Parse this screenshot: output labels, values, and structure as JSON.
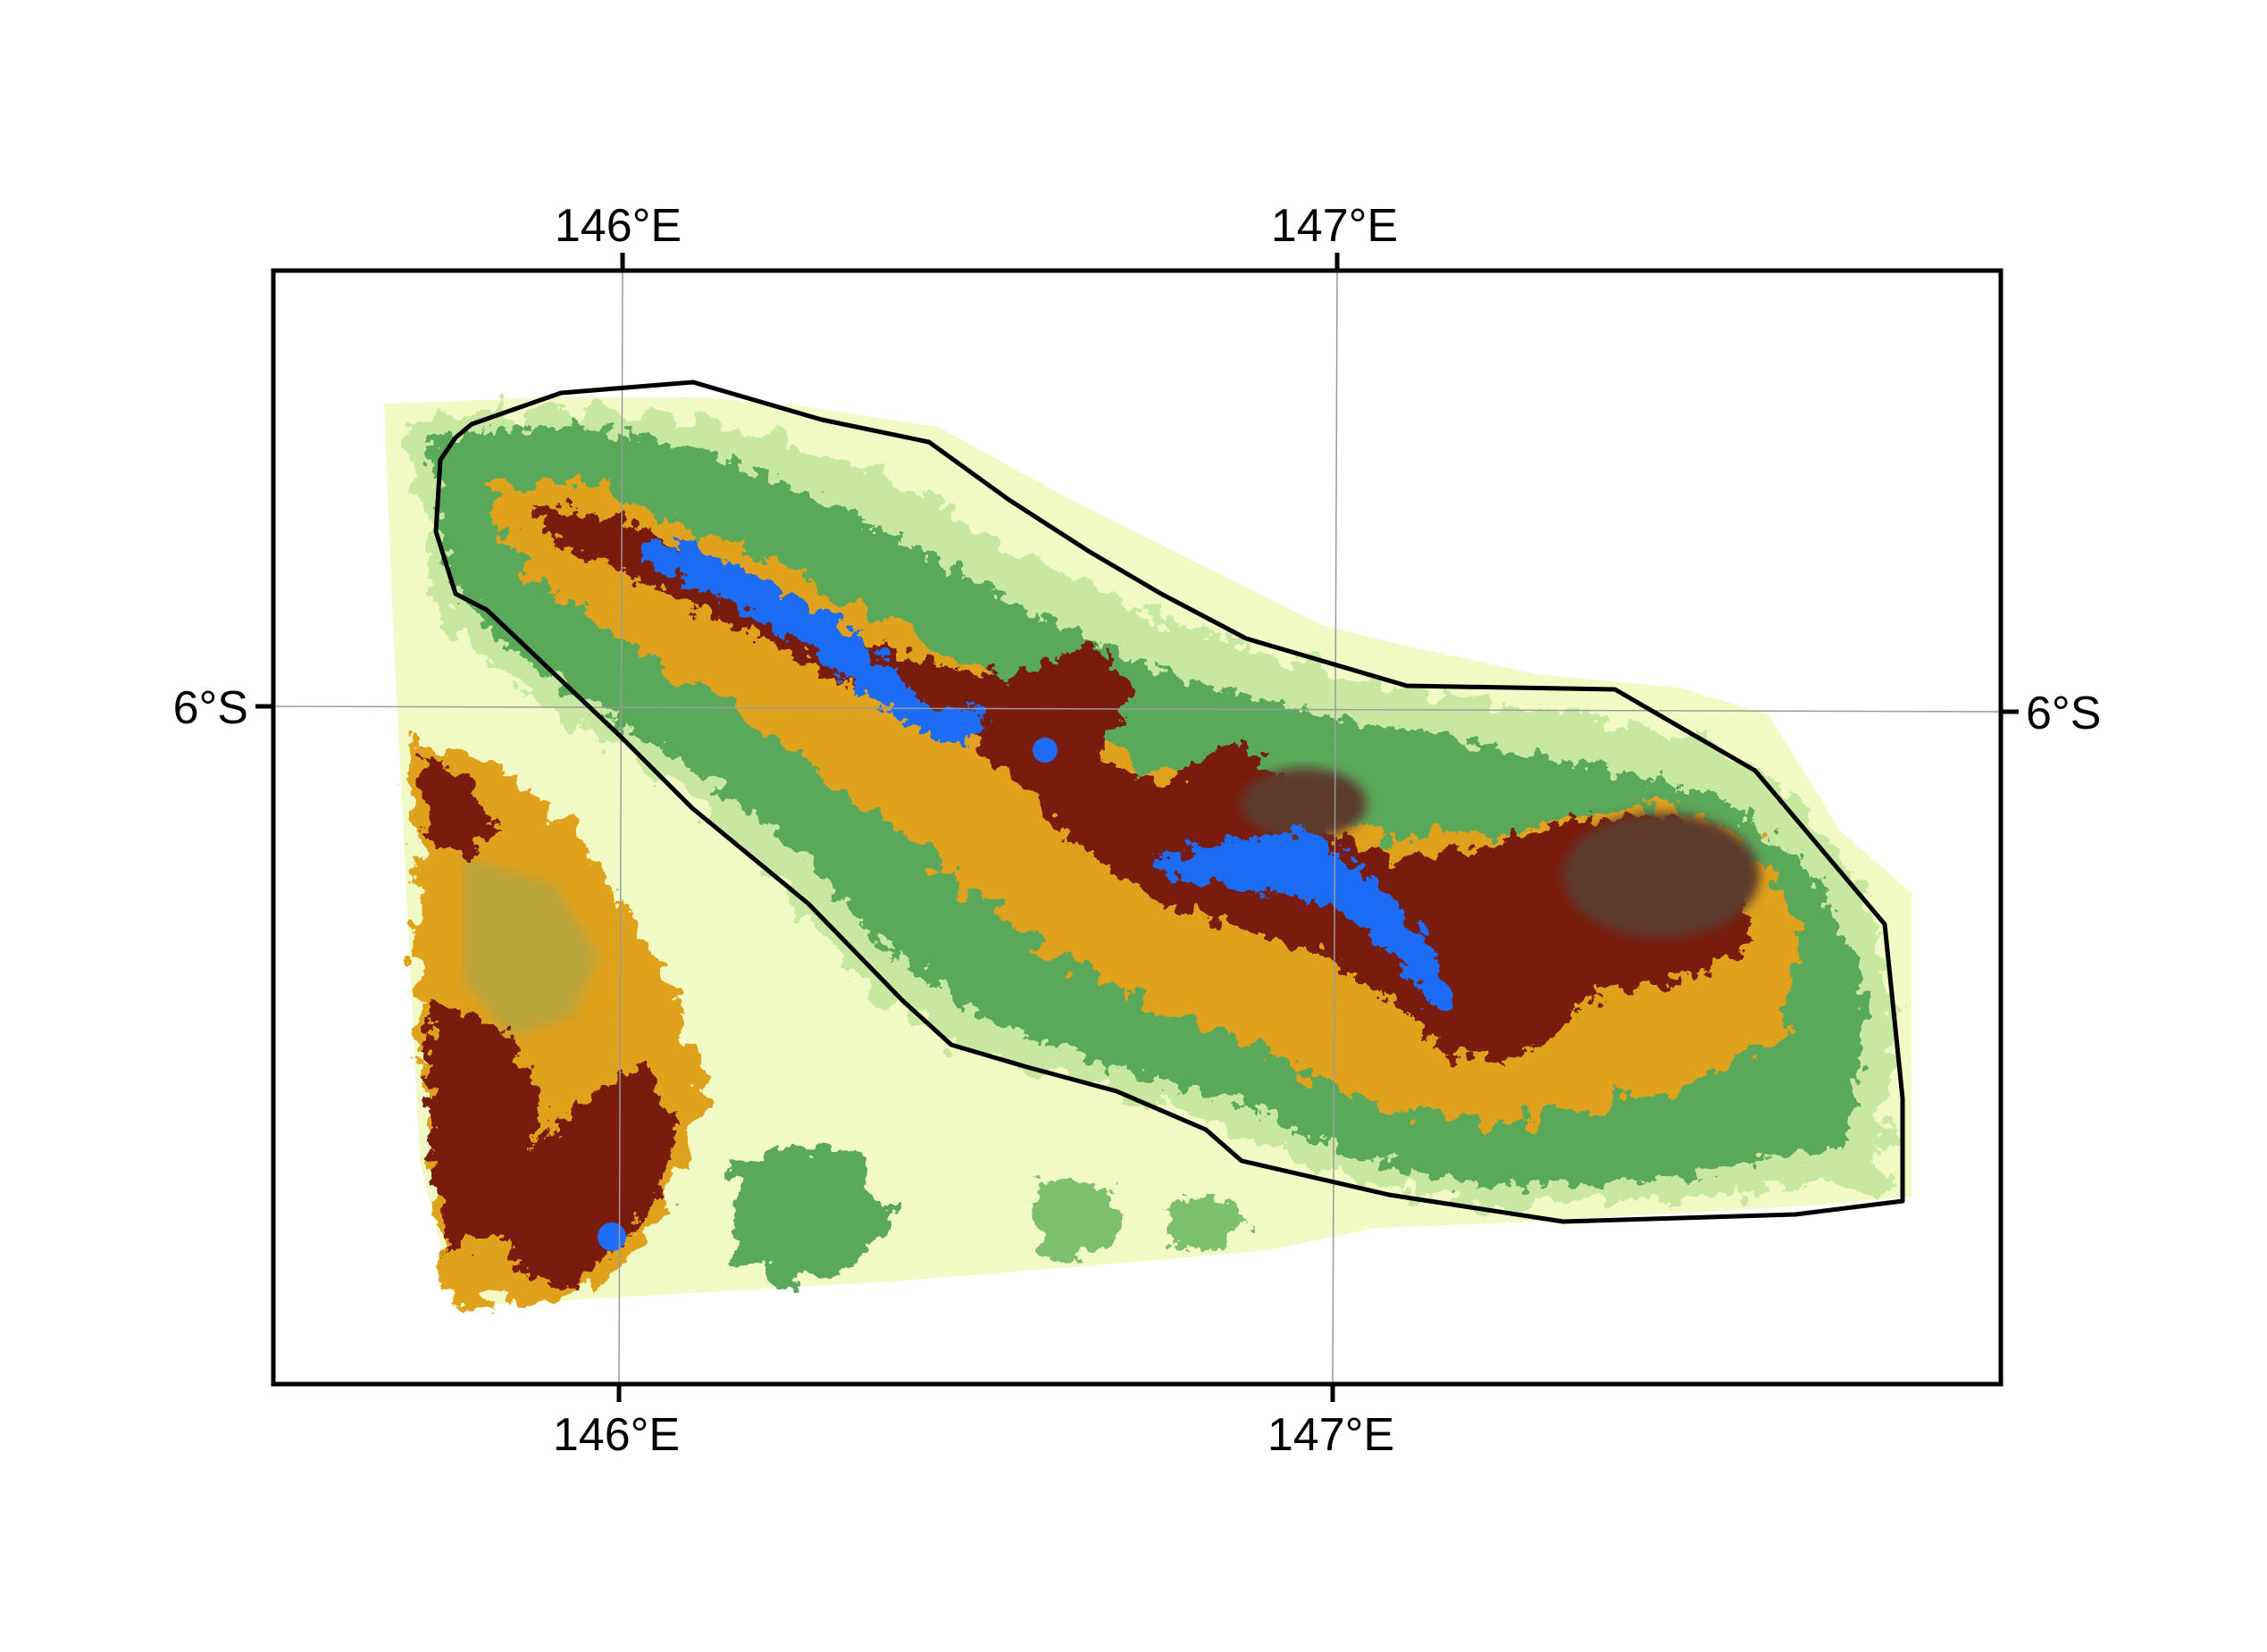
{
  "map": {
    "labels": {
      "lon_146_top": "146°E",
      "lon_147_top": "147°E",
      "lon_146_bottom": "146°E",
      "lon_147_bottom": "147°E",
      "lat_6_left": "6°S",
      "lat_6_right": "6°S"
    },
    "graticule": {
      "longitudes": [
        146,
        147
      ],
      "latitudes": [
        -6
      ]
    },
    "elevation_palette": {
      "lowland": "#f3fbc4",
      "low": "#bfe39a",
      "mid_low": "#5aa85a",
      "mid": "#e2a21c",
      "high": "#7a1a08",
      "very_high": "#5a3a2a",
      "summit": "#1e6bff"
    },
    "boundary_color": "#000000",
    "frame_color": "#000000",
    "grid_color": "#9a9a9a"
  }
}
